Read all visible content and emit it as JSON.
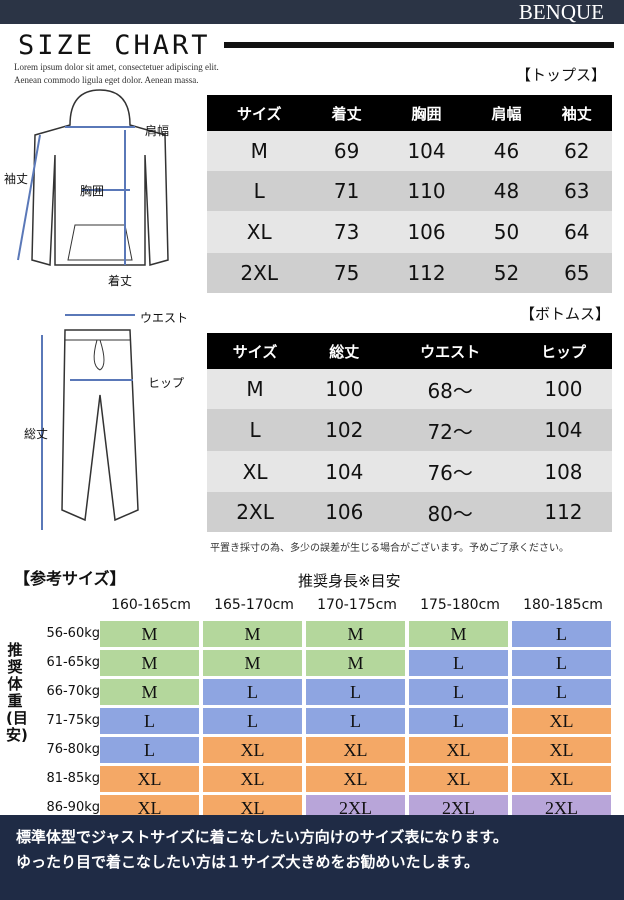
{
  "header": {
    "brand": "BENQUE",
    "title": "SIZE CHART",
    "lorem": [
      "Lorem ipsum dolor sit amet, consectetuer adipiscing elit.",
      "Aenean commodo ligula eget dolor. Aenean massa."
    ]
  },
  "tops": {
    "section": "【トップス】",
    "diagram_labels": {
      "shoulder": "肩幅",
      "sleeve": "袖丈",
      "chest": "胸囲",
      "length": "着丈"
    },
    "columns": [
      "サイズ",
      "着丈",
      "胸囲",
      "肩幅",
      "袖丈"
    ],
    "rows": [
      [
        "M",
        "69",
        "104",
        "46",
        "62"
      ],
      [
        "L",
        "71",
        "110",
        "48",
        "63"
      ],
      [
        "XL",
        "73",
        "106",
        "50",
        "64"
      ],
      [
        "2XL",
        "75",
        "112",
        "52",
        "65"
      ]
    ]
  },
  "bottoms": {
    "section": "【ボトムス】",
    "diagram_labels": {
      "waist": "ウエスト",
      "hip": "ヒップ",
      "length": "総丈"
    },
    "columns": [
      "サイズ",
      "総丈",
      "ウエスト",
      "ヒップ"
    ],
    "rows": [
      [
        "M",
        "100",
        "68～",
        "100"
      ],
      [
        "L",
        "102",
        "72～",
        "104"
      ],
      [
        "XL",
        "104",
        "76～",
        "108"
      ],
      [
        "2XL",
        "106",
        "80～",
        "112"
      ]
    ]
  },
  "note": "平置き採寸の為、多少の誤差が生じる場合がございます。予めご了承ください。",
  "reference": {
    "title": "【参考サイズ】",
    "height_title": "推奨身長※目安",
    "weight_title": "推奨体重(目安)",
    "heights": [
      "160-165cm",
      "165-170cm",
      "170-175cm",
      "175-180cm",
      "180-185cm"
    ],
    "weights": [
      "56-60kg",
      "61-65kg",
      "66-70kg",
      "71-75kg",
      "76-80kg",
      "81-85kg",
      "86-90kg"
    ],
    "grid": [
      [
        "M",
        "M",
        "M",
        "M",
        "L"
      ],
      [
        "M",
        "M",
        "M",
        "L",
        "L"
      ],
      [
        "M",
        "L",
        "L",
        "L",
        "L"
      ],
      [
        "L",
        "L",
        "L",
        "L",
        "XL"
      ],
      [
        "L",
        "XL",
        "XL",
        "XL",
        "XL"
      ],
      [
        "XL",
        "XL",
        "XL",
        "XL",
        "XL"
      ],
      [
        "XL",
        "XL",
        "2XL",
        "2XL",
        "2XL"
      ]
    ],
    "colors": {
      "M": "#b4d79c",
      "L": "#8ea5e1",
      "XL": "#f4a866",
      "2XL": "#b8a5d9"
    }
  },
  "footer": [
    "標準体型でジャストサイズに着こなしたい方向けのサイズ表になります。",
    "ゆったり目で着こなしたい方は１サイズ大きめをお勧めいたします。"
  ]
}
